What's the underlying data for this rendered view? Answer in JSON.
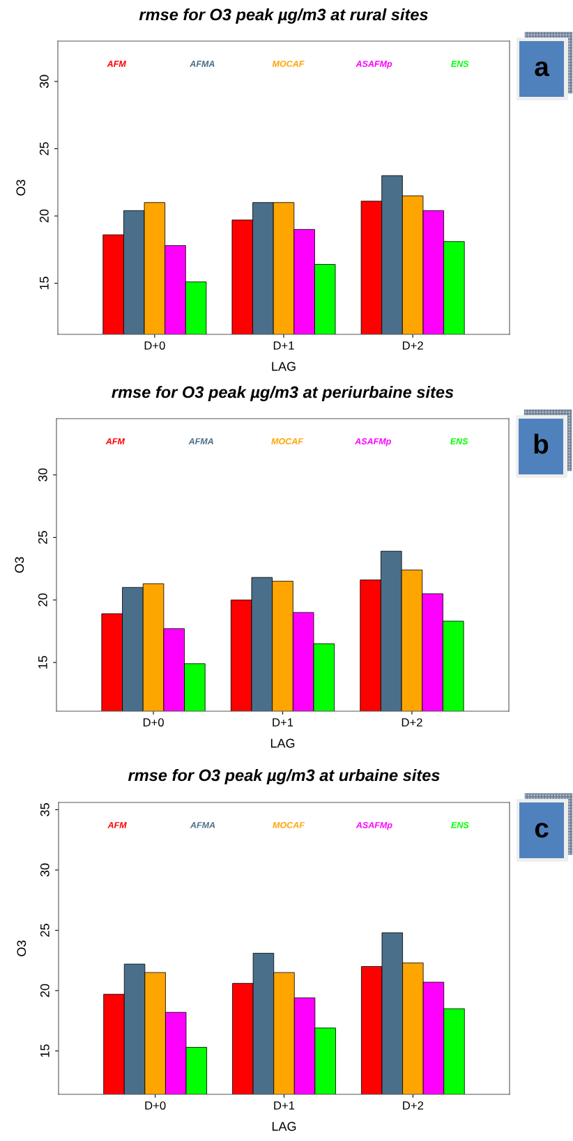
{
  "chart_data": [
    {
      "type": "bar",
      "title": "rmse for O3 peak µg/m3 at rural sites",
      "xlabel": "LAG",
      "ylabel": "O3",
      "categories": [
        "D+0",
        "D+1",
        "D+2"
      ],
      "ylim": [
        11.2,
        33.0
      ],
      "yticks": [
        15,
        20,
        25,
        30
      ],
      "grid": false,
      "legend": "top",
      "annotations": [
        "a"
      ],
      "series": [
        {
          "name": "AFM",
          "color": "#ff0000",
          "values": [
            18.6,
            19.7,
            21.1
          ]
        },
        {
          "name": "AFMA",
          "color": "#4a6f8a",
          "values": [
            20.4,
            21.0,
            23.0
          ]
        },
        {
          "name": "MOCAF",
          "color": "#ffa500",
          "values": [
            21.0,
            21.0,
            21.5
          ]
        },
        {
          "name": "ASAFMp",
          "color": "#ff00ff",
          "values": [
            17.8,
            19.0,
            20.4
          ]
        },
        {
          "name": "ENS",
          "color": "#00ff00",
          "values": [
            15.1,
            16.4,
            18.1
          ]
        }
      ]
    },
    {
      "type": "bar",
      "title": "rmse for O3 peak µg/m3 at periurbaine sites",
      "xlabel": "LAG",
      "ylabel": "O3",
      "categories": [
        "D+0",
        "D+1",
        "D+2"
      ],
      "ylim": [
        11.1,
        34.5
      ],
      "yticks": [
        15,
        20,
        25,
        30
      ],
      "grid": false,
      "legend": "top",
      "annotations": [
        "b"
      ],
      "series": [
        {
          "name": "AFM",
          "color": "#ff0000",
          "values": [
            18.9,
            20.0,
            21.6
          ]
        },
        {
          "name": "AFMA",
          "color": "#4a6f8a",
          "values": [
            21.0,
            21.8,
            23.9
          ]
        },
        {
          "name": "MOCAF",
          "color": "#ffa500",
          "values": [
            21.3,
            21.5,
            22.4
          ]
        },
        {
          "name": "ASAFMp",
          "color": "#ff00ff",
          "values": [
            17.7,
            19.0,
            20.5
          ]
        },
        {
          "name": "ENS",
          "color": "#00ff00",
          "values": [
            14.9,
            16.5,
            18.3
          ]
        }
      ]
    },
    {
      "type": "bar",
      "title": "rmse for O3 peak µg/m3 at urbaine sites",
      "xlabel": "LAG",
      "ylabel": "O3",
      "categories": [
        "D+0",
        "D+1",
        "D+2"
      ],
      "ylim": [
        11.4,
        35.6
      ],
      "yticks": [
        15,
        20,
        25,
        30,
        35
      ],
      "grid": false,
      "legend": "top",
      "annotations": [
        "c"
      ],
      "series": [
        {
          "name": "AFM",
          "color": "#ff0000",
          "values": [
            19.7,
            20.6,
            22.0
          ]
        },
        {
          "name": "AFMA",
          "color": "#4a6f8a",
          "values": [
            22.2,
            23.1,
            24.8
          ]
        },
        {
          "name": "MOCAF",
          "color": "#ffa500",
          "values": [
            21.5,
            21.5,
            22.3
          ]
        },
        {
          "name": "ASAFMp",
          "color": "#ff00ff",
          "values": [
            18.2,
            19.4,
            20.7
          ]
        },
        {
          "name": "ENS",
          "color": "#00ff00",
          "values": [
            15.3,
            16.9,
            18.5
          ]
        }
      ]
    }
  ]
}
